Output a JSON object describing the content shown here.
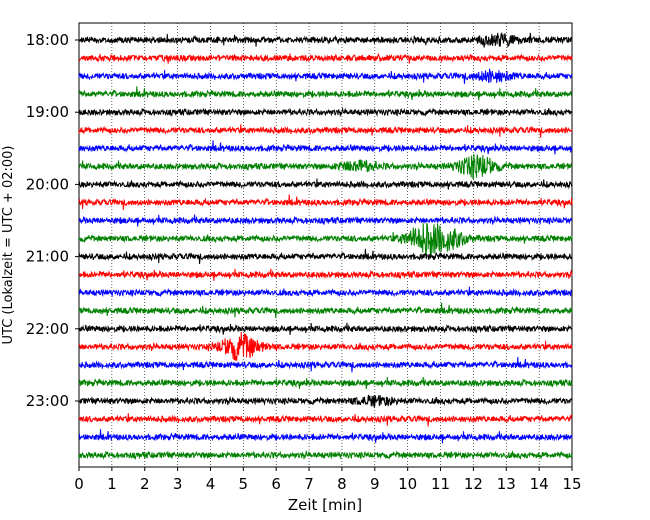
{
  "chart_data": {
    "type": "line",
    "subtype": "helicorder",
    "xlabel": "Zeit  [min]",
    "ylabel": "UTC (Lokalzeit = UTC + 02:00)",
    "xlim": [
      0,
      15
    ],
    "x_ticks": [
      "0",
      "1",
      "2",
      "3",
      "4",
      "5",
      "6",
      "7",
      "8",
      "9",
      "10",
      "11",
      "12",
      "13",
      "14",
      "15"
    ],
    "y_tick_labels": [
      "18:00",
      "19:00",
      "20:00",
      "21:00",
      "22:00",
      "23:00"
    ],
    "rows_per_hour": 4,
    "trace_colors": [
      "#000000",
      "#ff0000",
      "#0000ff",
      "#008000"
    ],
    "vertical_grid": "dotted",
    "events": [
      {
        "trace": 0,
        "minute": 12.8,
        "amplitude": 1.0
      },
      {
        "trace": 2,
        "minute": 12.6,
        "amplitude": 1.0
      },
      {
        "trace": 7,
        "minute": 12.1,
        "amplitude": 2.2
      },
      {
        "trace": 7,
        "minute": 8.5,
        "amplitude": 1.0
      },
      {
        "trace": 11,
        "minute": 10.5,
        "amplitude": 2.5
      },
      {
        "trace": 11,
        "minute": 11.2,
        "amplitude": 2.0
      },
      {
        "trace": 17,
        "minute": 4.9,
        "amplitude": 2.6
      },
      {
        "trace": 20,
        "minute": 9.0,
        "amplitude": 0.8
      }
    ]
  }
}
